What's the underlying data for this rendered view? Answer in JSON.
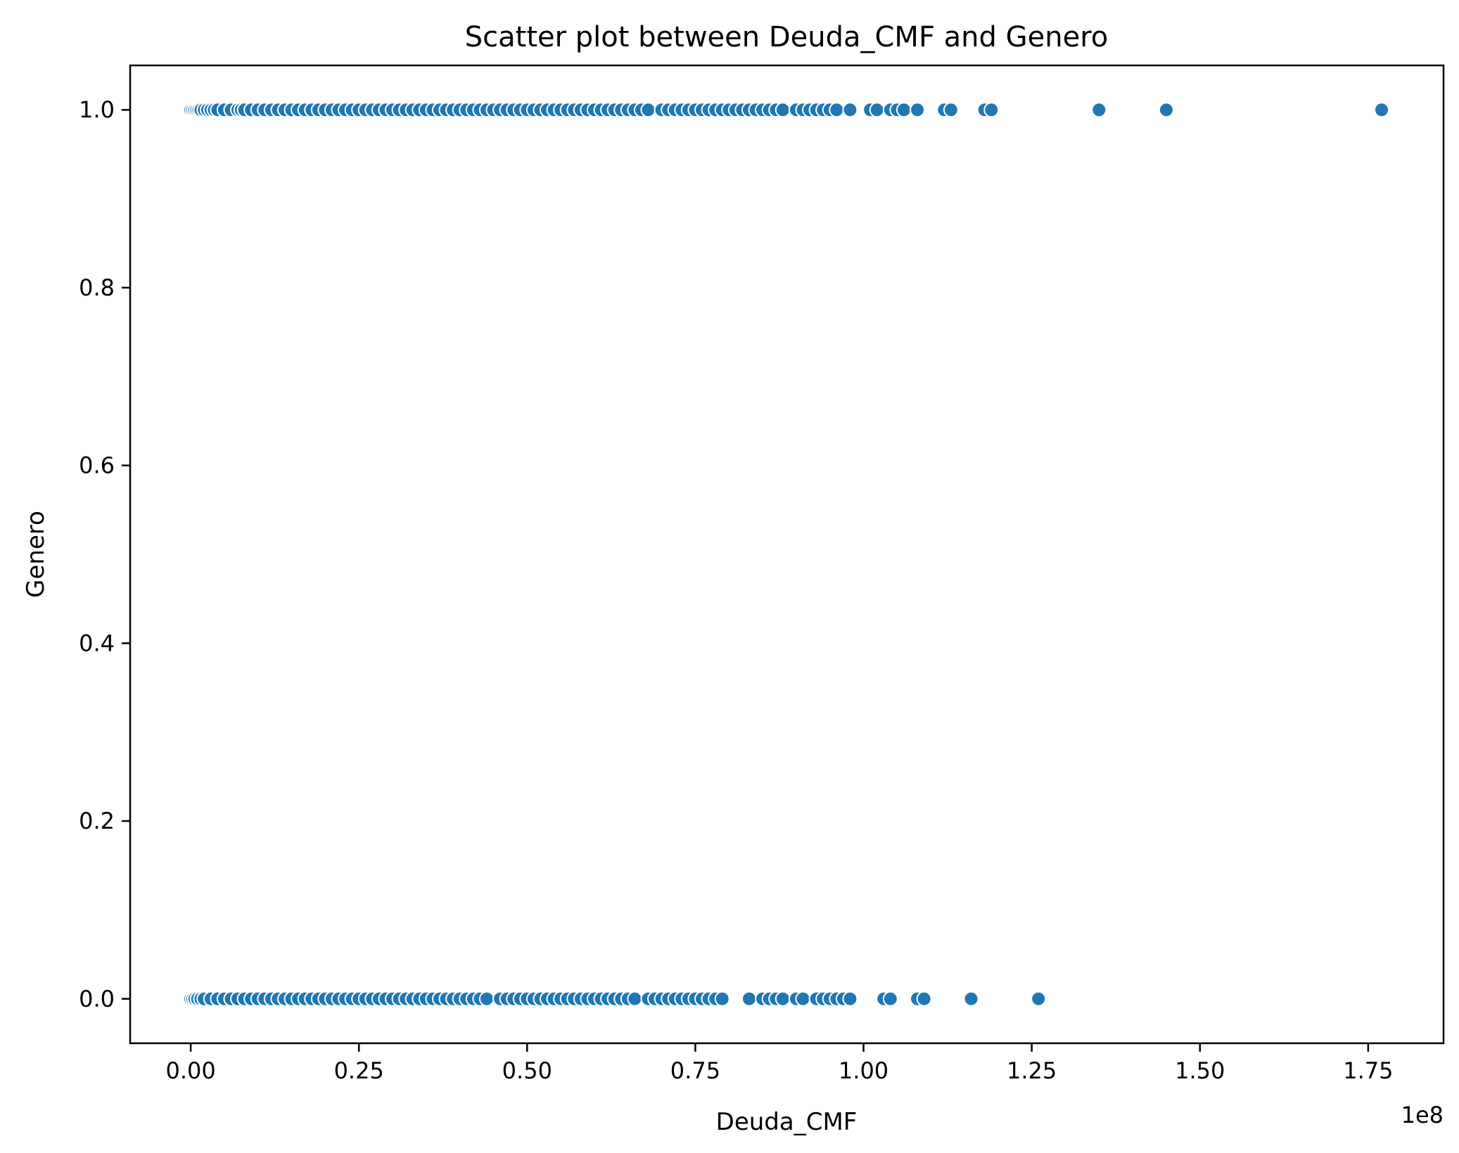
{
  "chart_data": {
    "type": "scatter",
    "title": "Scatter plot between Deuda_CMF and Genero",
    "xlabel": "Deuda_CMF",
    "ylabel": "Genero",
    "x_offset_label": "1e8",
    "xlim": [
      -0.09,
      1.862
    ],
    "ylim": [
      -0.05,
      1.05
    ],
    "x_ticks": [
      0.0,
      0.25,
      0.5,
      0.75,
      1.0,
      1.25,
      1.5,
      1.75
    ],
    "x_tick_labels": [
      "0.00",
      "0.25",
      "0.50",
      "0.75",
      "1.00",
      "1.25",
      "1.50",
      "1.75"
    ],
    "y_ticks": [
      0.0,
      0.2,
      0.4,
      0.6,
      0.8,
      1.0
    ],
    "y_tick_labels": [
      "0.0",
      "0.2",
      "0.4",
      "0.6",
      "0.8",
      "1.0"
    ],
    "grid": false,
    "legend": "none",
    "marker_color": "#1f77b4",
    "marker_edge_color": "#ffffff",
    "series": [
      {
        "y": 1,
        "x": [
          0.0,
          0.003,
          0.006,
          0.009,
          0.012,
          0.015,
          0.02,
          0.025,
          0.03,
          0.035,
          0.04,
          0.05,
          0.06,
          0.07,
          0.075,
          0.08,
          0.09,
          0.1,
          0.11,
          0.12,
          0.13,
          0.14,
          0.15,
          0.16,
          0.17,
          0.18,
          0.19,
          0.2,
          0.21,
          0.22,
          0.23,
          0.24,
          0.25,
          0.26,
          0.27,
          0.28,
          0.29,
          0.3,
          0.31,
          0.32,
          0.33,
          0.34,
          0.35,
          0.36,
          0.37,
          0.38,
          0.39,
          0.4,
          0.41,
          0.42,
          0.43,
          0.44,
          0.45,
          0.46,
          0.47,
          0.48,
          0.49,
          0.5,
          0.51,
          0.52,
          0.53,
          0.54,
          0.55,
          0.56,
          0.57,
          0.58,
          0.59,
          0.6,
          0.61,
          0.62,
          0.63,
          0.64,
          0.65,
          0.66,
          0.67,
          0.68,
          0.7,
          0.71,
          0.72,
          0.73,
          0.74,
          0.75,
          0.76,
          0.77,
          0.78,
          0.79,
          0.8,
          0.81,
          0.82,
          0.83,
          0.84,
          0.85,
          0.86,
          0.87,
          0.88,
          0.9,
          0.91,
          0.92,
          0.93,
          0.94,
          0.95,
          0.96,
          0.98,
          1.01,
          1.02,
          1.04,
          1.05,
          1.06,
          1.08,
          1.12,
          1.13,
          1.18,
          1.19,
          1.35,
          1.45,
          1.77
        ]
      },
      {
        "y": 0,
        "x": [
          0.0,
          0.003,
          0.006,
          0.01,
          0.015,
          0.02,
          0.03,
          0.04,
          0.05,
          0.06,
          0.07,
          0.08,
          0.09,
          0.1,
          0.11,
          0.12,
          0.13,
          0.14,
          0.15,
          0.16,
          0.17,
          0.18,
          0.19,
          0.2,
          0.21,
          0.22,
          0.23,
          0.24,
          0.25,
          0.26,
          0.27,
          0.28,
          0.29,
          0.3,
          0.31,
          0.32,
          0.33,
          0.34,
          0.35,
          0.36,
          0.37,
          0.38,
          0.39,
          0.4,
          0.41,
          0.42,
          0.43,
          0.44,
          0.46,
          0.47,
          0.48,
          0.49,
          0.5,
          0.51,
          0.52,
          0.53,
          0.54,
          0.55,
          0.56,
          0.57,
          0.58,
          0.59,
          0.6,
          0.61,
          0.62,
          0.63,
          0.64,
          0.65,
          0.66,
          0.68,
          0.69,
          0.7,
          0.71,
          0.72,
          0.73,
          0.74,
          0.75,
          0.76,
          0.77,
          0.78,
          0.79,
          0.83,
          0.85,
          0.86,
          0.87,
          0.88,
          0.9,
          0.91,
          0.93,
          0.94,
          0.95,
          0.96,
          0.97,
          0.98,
          1.03,
          1.04,
          1.08,
          1.09,
          1.16,
          1.26
        ]
      }
    ]
  }
}
